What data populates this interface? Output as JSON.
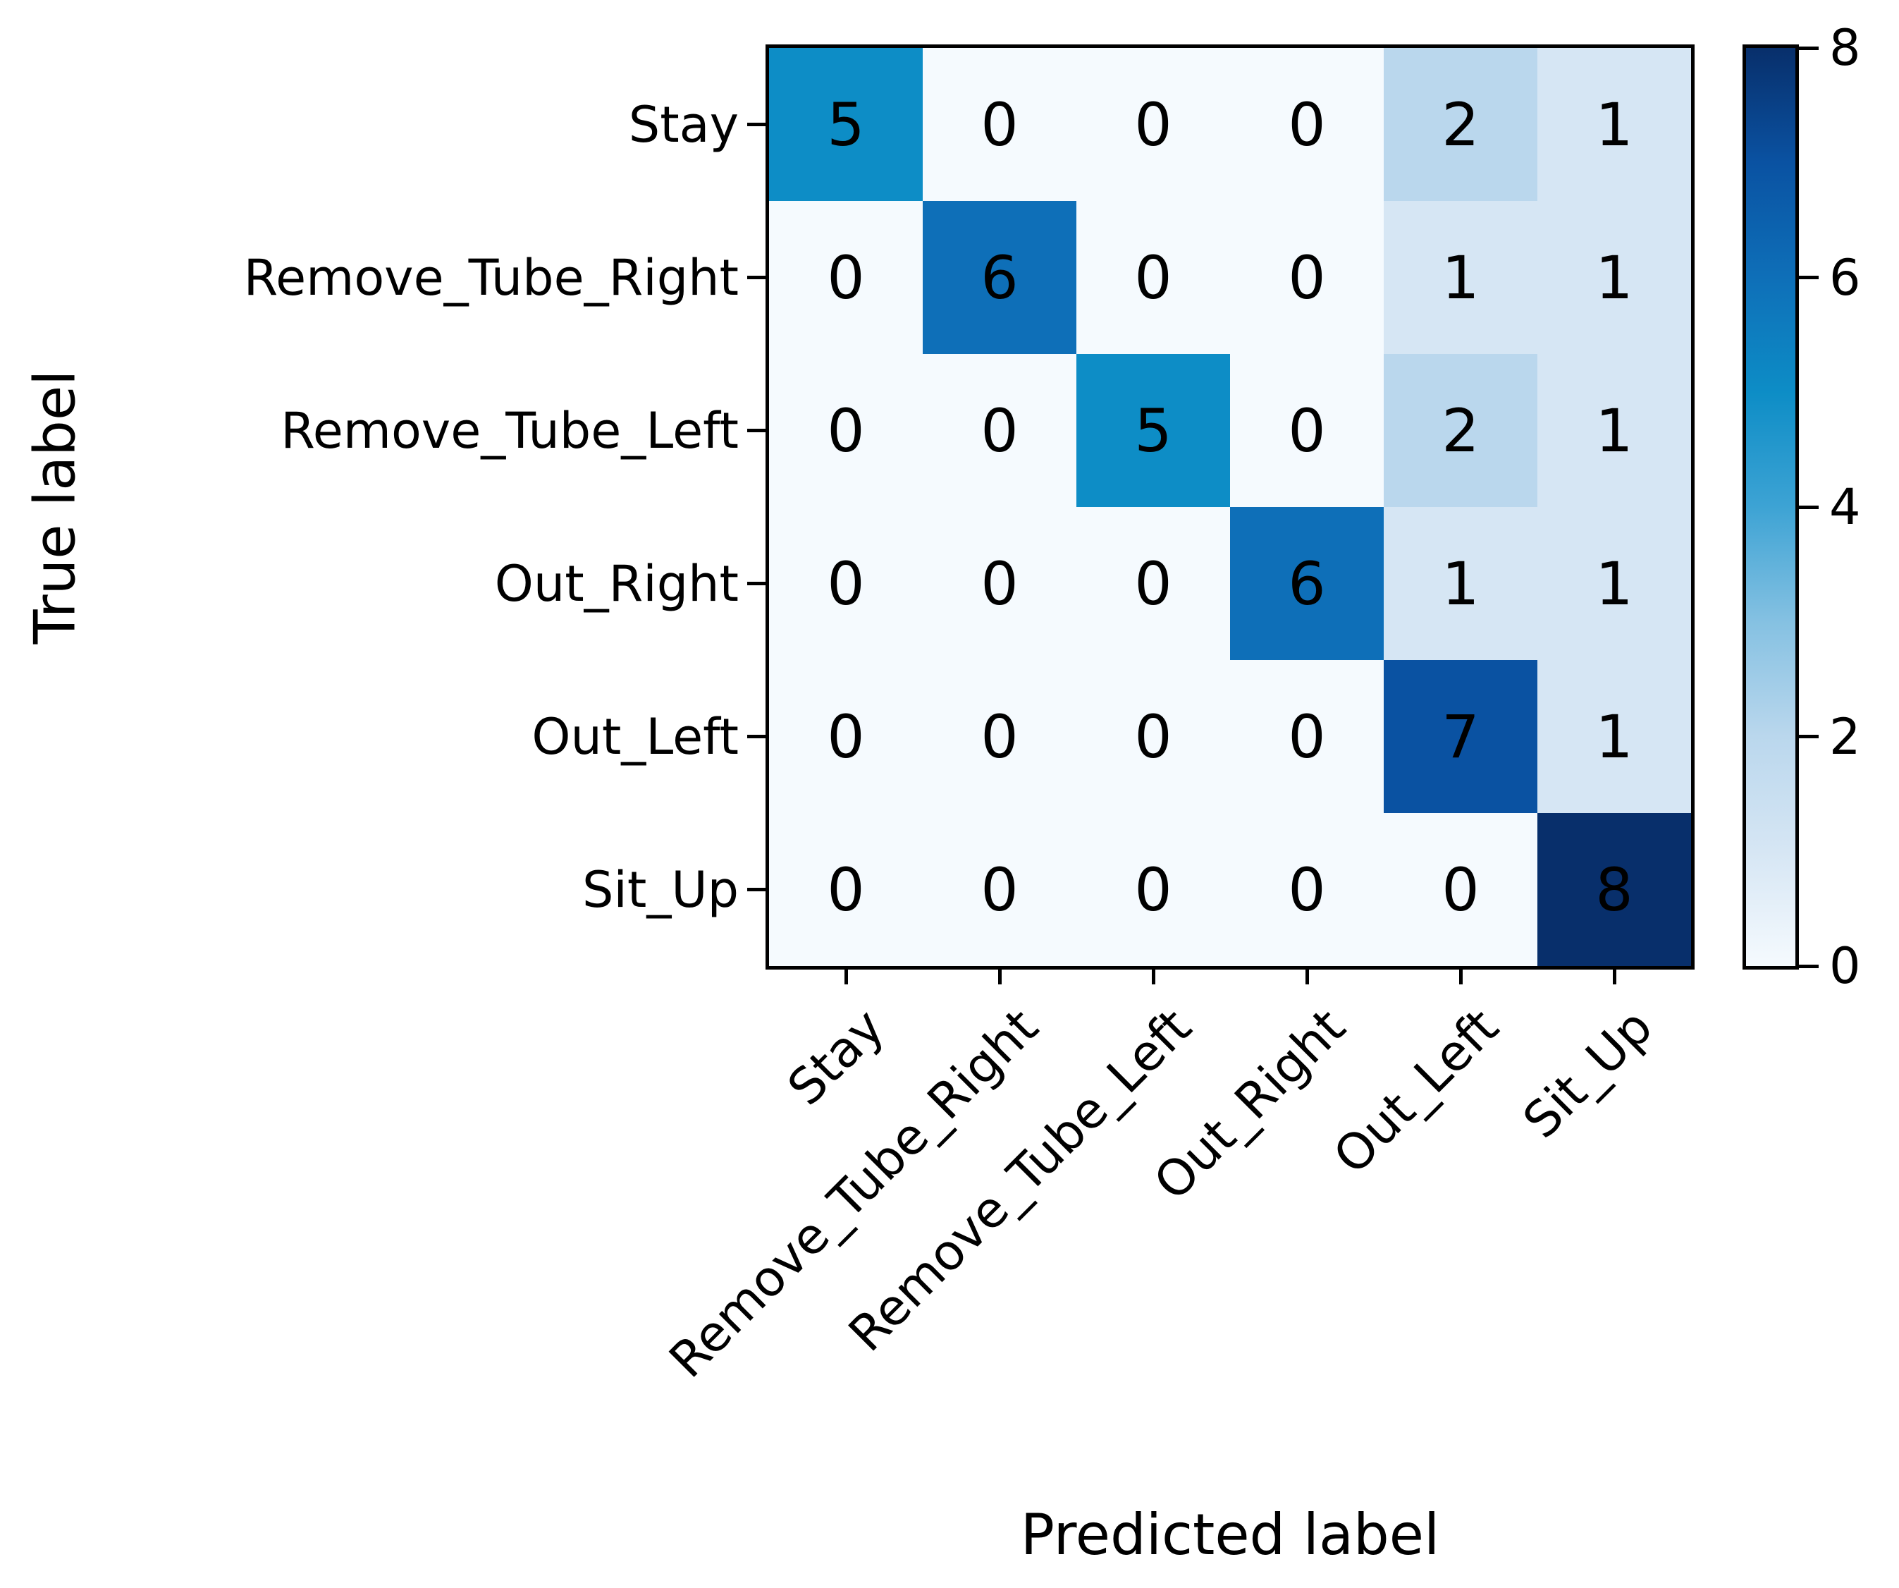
{
  "chart_data": {
    "type": "heatmap",
    "subtype": "confusion-matrix",
    "xlabel": "Predicted label",
    "ylabel": "True label",
    "x_categories": [
      "Stay",
      "Remove_Tube_Right",
      "Remove_Tube_Left",
      "Out_Right",
      "Out_Left",
      "Sit_Up"
    ],
    "y_categories": [
      "Stay",
      "Remove_Tube_Right",
      "Remove_Tube_Left",
      "Out_Right",
      "Out_Left",
      "Sit_Up"
    ],
    "matrix": [
      [
        5,
        0,
        0,
        0,
        2,
        1
      ],
      [
        0,
        6,
        0,
        0,
        1,
        1
      ],
      [
        0,
        0,
        5,
        0,
        2,
        1
      ],
      [
        0,
        0,
        0,
        6,
        1,
        1
      ],
      [
        0,
        0,
        0,
        0,
        7,
        1
      ],
      [
        0,
        0,
        0,
        0,
        0,
        8
      ]
    ],
    "colormap": "Blues",
    "colorbar": {
      "min": 0,
      "max": 8,
      "ticks": [
        0,
        2,
        4,
        6,
        8
      ],
      "position": "right"
    },
    "value_colors": {
      "0": "#f5fafe",
      "1": "#d6e6f4",
      "2": "#bad7ed",
      "5": "#0d8dc6",
      "6": "#0e6fb8",
      "7": "#0a52a2",
      "8": "#082f6b"
    },
    "gradient_stops_bottom_to_top": [
      "#f5fafe",
      "#d6e6f4",
      "#bad7ed",
      "#85c1e2",
      "#3da3d4",
      "#0d8dc6",
      "#0e6fb8",
      "#0a52a2",
      "#082f6b"
    ],
    "grid": false,
    "text_color": "#000000",
    "background_color": "#ffffff"
  }
}
